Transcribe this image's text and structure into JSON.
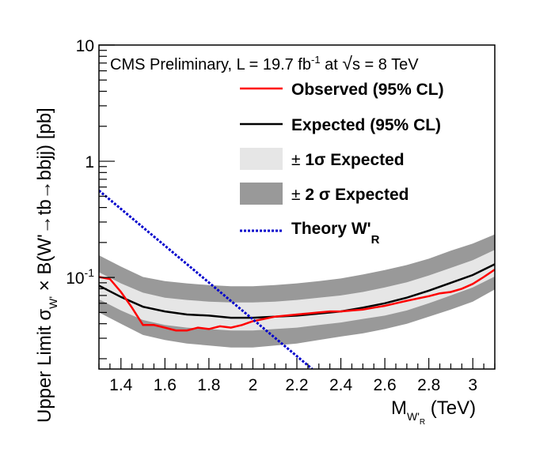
{
  "chart_data": {
    "type": "line",
    "header": {
      "prefix": "CMS Preliminary, L = 19.7 fb",
      "exp": "-1",
      "mid": " at ",
      "sqrt": "√",
      "tail": "s = 8 TeV"
    },
    "xlabel": {
      "main": "M",
      "sub": "W'",
      "subsub": "R",
      "units": " (TeV)"
    },
    "ylabel": "Upper Limit σ",
    "ylabel_sub": "W'",
    "ylabel_rest": " × B(W'→tb→bbjj) [pb]",
    "xlim": [
      1.3,
      3.1
    ],
    "ylim": [
      0.0163,
      10
    ],
    "ylog": true,
    "grid": false,
    "legend_position": "top-right",
    "x_ticks": [
      "1.4",
      "1.6",
      "1.8",
      "2",
      "2.2",
      "2.4",
      "2.6",
      "2.8",
      "3"
    ],
    "y_ticks": [
      {
        "value": 10,
        "mant": "10",
        "exp": ""
      },
      {
        "value": 1,
        "mant": "1",
        "exp": ""
      },
      {
        "value": 0.1,
        "mant": "10",
        "exp": "-1"
      }
    ],
    "legend": [
      {
        "key": "obs",
        "label": "Observed (95% CL)",
        "style": "line",
        "color": "#ff0000"
      },
      {
        "key": "exp",
        "label": "Expected (95% CL)",
        "style": "line",
        "color": "#000000"
      },
      {
        "key": "band1",
        "pm": "±",
        "label_sigma": " 1σ",
        "label": " Expected",
        "style": "band",
        "color": "#e6e6e6"
      },
      {
        "key": "band2",
        "pm": "±",
        "label_sigma": " 2 σ",
        "label": " Expected",
        "style": "band",
        "color": "#999999"
      },
      {
        "key": "theory",
        "label": "Theory W'",
        "label_sub": "R",
        "style": "dotted",
        "color": "#0000cc"
      }
    ],
    "x": [
      1.3,
      1.4,
      1.5,
      1.6,
      1.7,
      1.8,
      1.9,
      2.0,
      2.1,
      2.2,
      2.3,
      2.4,
      2.5,
      2.6,
      2.7,
      2.8,
      2.9,
      3.0,
      3.1
    ],
    "series": [
      {
        "name": "Observed (95% CL)",
        "key": "obs",
        "x": [
          1.3,
          1.35,
          1.4,
          1.45,
          1.5,
          1.55,
          1.6,
          1.65,
          1.7,
          1.75,
          1.8,
          1.85,
          1.9,
          1.95,
          2.0,
          2.05,
          2.1,
          2.15,
          2.2,
          2.25,
          2.3,
          2.35,
          2.4,
          2.45,
          2.5,
          2.55,
          2.6,
          2.65,
          2.7,
          2.75,
          2.8,
          2.85,
          2.9,
          2.95,
          3.0,
          3.05,
          3.1
        ],
        "values": [
          0.101,
          0.097,
          0.075,
          0.055,
          0.039,
          0.039,
          0.037,
          0.035,
          0.035,
          0.037,
          0.036,
          0.038,
          0.037,
          0.039,
          0.042,
          0.044,
          0.046,
          0.047,
          0.048,
          0.049,
          0.05,
          0.051,
          0.051,
          0.052,
          0.053,
          0.055,
          0.057,
          0.06,
          0.063,
          0.066,
          0.069,
          0.073,
          0.075,
          0.08,
          0.088,
          0.101,
          0.117
        ]
      },
      {
        "name": "Expected (95% CL)",
        "key": "exp",
        "values": [
          0.085,
          0.068,
          0.056,
          0.051,
          0.048,
          0.047,
          0.045,
          0.045,
          0.046,
          0.047,
          0.049,
          0.051,
          0.055,
          0.06,
          0.067,
          0.077,
          0.09,
          0.105,
          0.13
        ]
      },
      {
        "name": "± 1σ Expected",
        "key": "band1",
        "lower": [
          0.065,
          0.052,
          0.043,
          0.039,
          0.037,
          0.036,
          0.035,
          0.035,
          0.036,
          0.037,
          0.039,
          0.041,
          0.044,
          0.047,
          0.052,
          0.06,
          0.07,
          0.082,
          0.102
        ],
        "upper": [
          0.111,
          0.089,
          0.074,
          0.067,
          0.064,
          0.062,
          0.061,
          0.061,
          0.062,
          0.064,
          0.067,
          0.07,
          0.075,
          0.082,
          0.091,
          0.104,
          0.121,
          0.141,
          0.173
        ]
      },
      {
        "name": "± 2 σ Expected",
        "key": "band2",
        "lower": [
          0.05,
          0.04,
          0.032,
          0.029,
          0.027,
          0.026,
          0.025,
          0.025,
          0.026,
          0.027,
          0.029,
          0.031,
          0.033,
          0.036,
          0.04,
          0.046,
          0.053,
          0.062,
          0.079
        ],
        "upper": [
          0.155,
          0.124,
          0.101,
          0.093,
          0.089,
          0.086,
          0.084,
          0.084,
          0.086,
          0.089,
          0.093,
          0.098,
          0.106,
          0.116,
          0.128,
          0.145,
          0.17,
          0.196,
          0.235
        ]
      },
      {
        "name": "Theory W'R",
        "key": "theory",
        "x": [
          1.3,
          2.27
        ],
        "values": [
          0.56,
          0.0163
        ]
      }
    ]
  }
}
